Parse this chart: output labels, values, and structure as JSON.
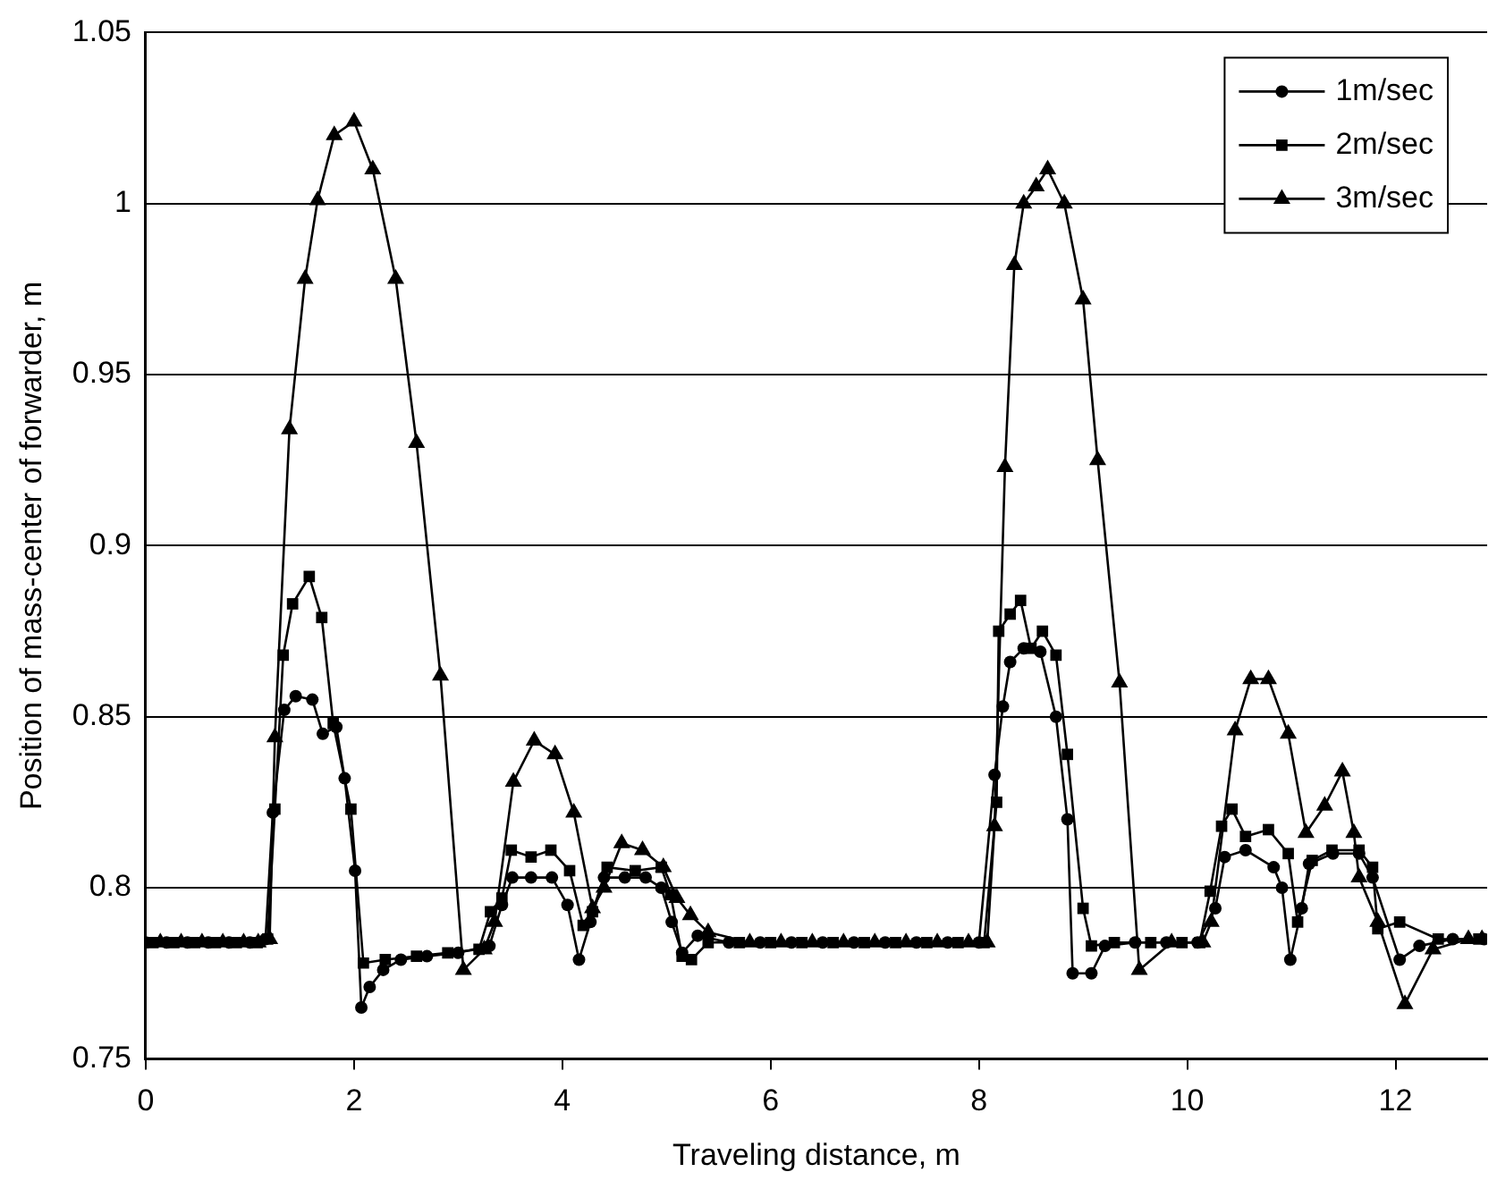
{
  "chart_data": {
    "type": "line",
    "xlabel": "Traveling distance, m",
    "ylabel": "Position of mass-center of forwarder, m",
    "xlim": [
      0,
      12.88
    ],
    "xticks": [
      0,
      2,
      4,
      6,
      8,
      10,
      12
    ],
    "ylim": [
      0.75,
      1.05
    ],
    "yticks": [
      0.75,
      0.8,
      0.85,
      0.9,
      0.95,
      1,
      1.05
    ],
    "grid": "y",
    "legend": "top right",
    "series": [
      {
        "name": "1m/sec",
        "color": "#000000",
        "marker": "circle",
        "x": [
          0,
          0.2,
          0.4,
          0.6,
          0.8,
          1.0,
          1.15,
          1.22,
          1.33,
          1.44,
          1.6,
          1.7,
          1.83,
          1.91,
          2.01,
          2.07,
          2.15,
          2.28,
          2.45,
          2.7,
          3.0,
          3.3,
          3.42,
          3.52,
          3.7,
          3.9,
          4.05,
          4.16,
          4.27,
          4.4,
          4.6,
          4.8,
          4.95,
          5.05,
          5.15,
          5.3,
          5.6,
          5.9,
          6.2,
          6.5,
          6.8,
          7.1,
          7.4,
          7.7,
          8.0,
          8.15,
          8.23,
          8.3,
          8.43,
          8.59,
          8.74,
          8.85,
          8.9,
          9.08,
          9.21,
          9.5,
          9.8,
          10.1,
          10.27,
          10.36,
          10.56,
          10.83,
          10.91,
          10.99,
          11.1,
          11.17,
          11.4,
          11.65,
          11.78,
          12.04,
          12.23,
          12.55,
          12.85
        ],
        "values": [
          0.784,
          0.784,
          0.784,
          0.784,
          0.784,
          0.784,
          0.785,
          0.822,
          0.852,
          0.856,
          0.855,
          0.845,
          0.847,
          0.832,
          0.805,
          0.765,
          0.771,
          0.776,
          0.779,
          0.78,
          0.781,
          0.783,
          0.795,
          0.803,
          0.803,
          0.803,
          0.795,
          0.779,
          0.79,
          0.803,
          0.803,
          0.803,
          0.8,
          0.79,
          0.781,
          0.786,
          0.784,
          0.784,
          0.784,
          0.784,
          0.784,
          0.784,
          0.784,
          0.784,
          0.784,
          0.833,
          0.853,
          0.866,
          0.87,
          0.869,
          0.85,
          0.82,
          0.775,
          0.775,
          0.783,
          0.784,
          0.784,
          0.784,
          0.794,
          0.809,
          0.811,
          0.806,
          0.8,
          0.779,
          0.794,
          0.807,
          0.81,
          0.81,
          0.803,
          0.779,
          0.783,
          0.785,
          0.785
        ]
      },
      {
        "name": "2m/sec",
        "color": "#000000",
        "marker": "square",
        "x": [
          0.07,
          0.27,
          0.47,
          0.67,
          0.87,
          1.07,
          1.17,
          1.24,
          1.32,
          1.41,
          1.57,
          1.69,
          1.8,
          1.97,
          2.09,
          2.3,
          2.6,
          2.9,
          3.2,
          3.31,
          3.42,
          3.51,
          3.7,
          3.89,
          4.07,
          4.2,
          4.29,
          4.43,
          4.7,
          4.95,
          5.04,
          5.15,
          5.24,
          5.4,
          5.7,
          6.0,
          6.3,
          6.6,
          6.9,
          7.2,
          7.5,
          7.8,
          8.05,
          8.17,
          8.19,
          8.3,
          8.4,
          8.5,
          8.61,
          8.74,
          8.85,
          9.0,
          9.08,
          9.3,
          9.65,
          9.95,
          10.12,
          10.22,
          10.33,
          10.43,
          10.56,
          10.78,
          10.97,
          11.06,
          11.2,
          11.39,
          11.65,
          11.78,
          11.83,
          12.04,
          12.41,
          12.8
        ],
        "values": [
          0.784,
          0.784,
          0.784,
          0.784,
          0.784,
          0.784,
          0.785,
          0.823,
          0.868,
          0.883,
          0.891,
          0.879,
          0.848,
          0.823,
          0.778,
          0.779,
          0.78,
          0.781,
          0.782,
          0.793,
          0.797,
          0.811,
          0.809,
          0.811,
          0.805,
          0.789,
          0.793,
          0.806,
          0.805,
          0.806,
          0.798,
          0.78,
          0.779,
          0.784,
          0.784,
          0.784,
          0.784,
          0.784,
          0.784,
          0.784,
          0.784,
          0.784,
          0.784,
          0.825,
          0.875,
          0.88,
          0.884,
          0.87,
          0.875,
          0.868,
          0.839,
          0.794,
          0.783,
          0.784,
          0.784,
          0.784,
          0.784,
          0.799,
          0.818,
          0.823,
          0.815,
          0.817,
          0.81,
          0.79,
          0.808,
          0.811,
          0.811,
          0.806,
          0.788,
          0.79,
          0.785,
          0.785
        ]
      },
      {
        "name": "3m/sec",
        "color": "#000000",
        "marker": "triangle",
        "x": [
          0.14,
          0.34,
          0.54,
          0.74,
          0.94,
          1.08,
          1.19,
          1.24,
          1.38,
          1.53,
          1.65,
          1.81,
          2.0,
          2.18,
          2.4,
          2.6,
          2.83,
          3.05,
          3.25,
          3.35,
          3.53,
          3.73,
          3.93,
          4.11,
          4.29,
          4.4,
          4.57,
          4.77,
          4.97,
          5.1,
          5.23,
          5.4,
          5.8,
          6.1,
          6.4,
          6.7,
          7.0,
          7.3,
          7.6,
          7.9,
          8.08,
          8.15,
          8.25,
          8.34,
          8.43,
          8.55,
          8.66,
          8.82,
          9.0,
          9.14,
          9.35,
          9.54,
          9.85,
          10.15,
          10.23,
          10.46,
          10.61,
          10.78,
          10.97,
          11.14,
          11.32,
          11.49,
          11.6,
          11.65,
          11.83,
          12.09,
          12.36,
          12.7,
          12.83
        ],
        "values": [
          0.784,
          0.784,
          0.784,
          0.784,
          0.784,
          0.784,
          0.785,
          0.844,
          0.934,
          0.978,
          1.001,
          1.02,
          1.024,
          1.01,
          0.978,
          0.93,
          0.862,
          0.776,
          0.782,
          0.79,
          0.831,
          0.843,
          0.839,
          0.822,
          0.794,
          0.8,
          0.813,
          0.811,
          0.806,
          0.797,
          0.792,
          0.787,
          0.784,
          0.784,
          0.784,
          0.784,
          0.784,
          0.784,
          0.784,
          0.784,
          0.784,
          0.818,
          0.923,
          0.982,
          1.0,
          1.005,
          1.01,
          1.0,
          0.972,
          0.925,
          0.86,
          0.776,
          0.784,
          0.784,
          0.79,
          0.846,
          0.861,
          0.861,
          0.845,
          0.816,
          0.824,
          0.834,
          0.816,
          0.803,
          0.79,
          0.766,
          0.782,
          0.785,
          0.785
        ]
      }
    ]
  }
}
